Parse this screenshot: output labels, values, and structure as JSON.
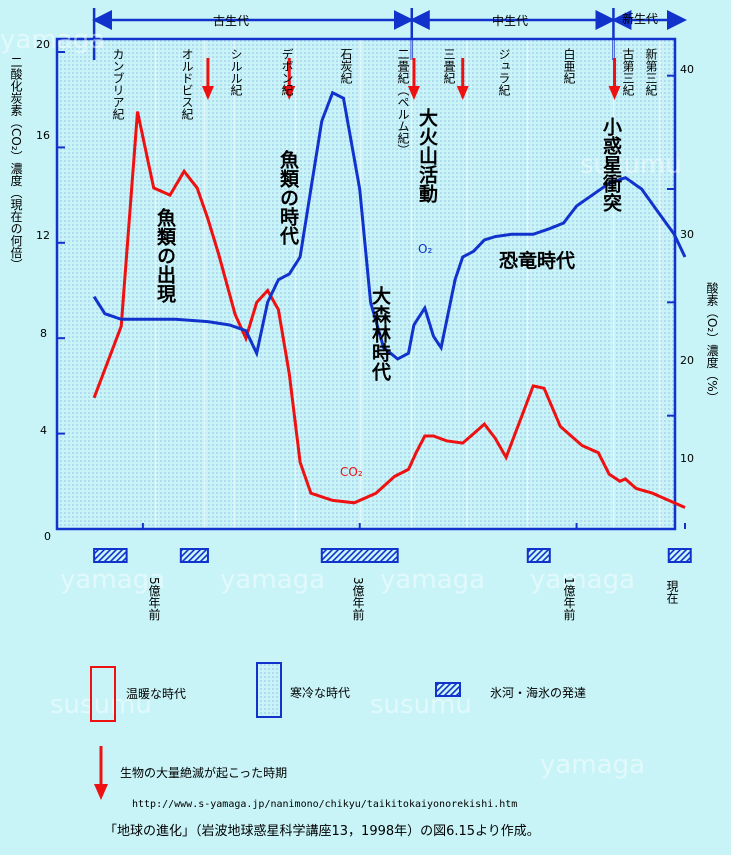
{
  "eras": {
    "paleozoic": "古生代",
    "mesozoic": "中生代",
    "cenozoic": "新生代"
  },
  "periods": [
    "カンブリア紀",
    "オルドビス紀",
    "シルル紀",
    "デボン紀",
    "石炭紀",
    "二畳紀（ペルム紀）",
    "三畳紀",
    "ジュラ紀",
    "白亜紀",
    "古第三紀",
    "新第三紀"
  ],
  "annotations": {
    "fish_appear": "魚類の出現",
    "fish_age": "魚類の時代",
    "forest_age": "大森林時代",
    "volcano": "大火山活動",
    "asteroid": "小惑星衝突",
    "dino_age": "恐竜時代",
    "o2_label": "O₂",
    "co2_label": "CO₂"
  },
  "axes": {
    "left_label": "二酸化炭素（CO₂）濃度（現在の何倍）",
    "right_label": "酸素（O₂）濃度（%）",
    "left_ticks": [
      "20",
      "16",
      "12",
      "8",
      "4",
      "0"
    ],
    "right_ticks": [
      "40",
      "30",
      "20",
      "10"
    ],
    "time_ticks": [
      "5億年前",
      "3億年前",
      "1億年前",
      "現在"
    ]
  },
  "legend": {
    "warm": "温暖な時代",
    "cold": "寒冷な時代",
    "glacier": "氷河・海氷の発達",
    "extinction": "生物の大量絶滅が起こった時期"
  },
  "url": "http://www.s-yamaga.jp/nanimono/chikyu/taikitokaiyonorekishi.htm",
  "source": "「地球の進化」（岩波地球惑星科学講座13，1998年）の図6.15より作成。",
  "watermark": [
    "yamaga",
    "susumu"
  ],
  "colors": {
    "co2": "#ee1111",
    "o2": "#1133cc",
    "warm": "#ee1111",
    "cold": "#1133cc",
    "background": "#c8f4f8"
  },
  "chart_data": {
    "type": "line",
    "x_unit": "million years ago",
    "xlim": [
      560,
      0
    ],
    "ylim_left": [
      0,
      20
    ],
    "ylim_right": [
      0,
      45
    ],
    "series": [
      {
        "name": "CO₂",
        "axis": "left",
        "x": [
          545,
          520,
          505,
          490,
          475,
          462,
          450,
          440,
          430,
          415,
          405,
          395,
          385,
          375,
          365,
          355,
          345,
          325,
          305,
          285,
          268,
          255,
          248,
          240,
          232,
          220,
          205,
          195,
          185,
          175,
          165,
          150,
          140,
          130,
          115,
          95,
          80,
          70,
          60,
          55,
          45,
          30,
          20,
          10,
          0
        ],
        "values": [
          5.5,
          8.5,
          17.5,
          14.3,
          14.0,
          15.0,
          14.3,
          13.0,
          11.5,
          9.0,
          8.0,
          9.5,
          10.0,
          9.2,
          6.5,
          2.8,
          1.5,
          1.2,
          1.1,
          1.5,
          2.2,
          2.5,
          3.2,
          3.9,
          3.9,
          3.7,
          3.6,
          4.0,
          4.4,
          3.8,
          3.0,
          4.8,
          6.0,
          5.9,
          4.3,
          3.5,
          3.2,
          2.3,
          2.0,
          2.1,
          1.7,
          1.5,
          1.3,
          1.1,
          0.9
        ]
      },
      {
        "name": "O₂",
        "axis": "right",
        "x": [
          545,
          535,
          520,
          500,
          470,
          440,
          420,
          405,
          395,
          385,
          375,
          365,
          355,
          345,
          335,
          325,
          315,
          300,
          290,
          278,
          265,
          255,
          250,
          240,
          232,
          225,
          212,
          205,
          195,
          185,
          175,
          160,
          140,
          125,
          112,
          100,
          85,
          70,
          55,
          40,
          25,
          10,
          0
        ],
        "values": [
          20.5,
          19.0,
          18.5,
          18.5,
          18.5,
          18.3,
          18.0,
          17.5,
          15.5,
          20.0,
          22.0,
          22.5,
          24.0,
          30.0,
          36.0,
          38.5,
          38.0,
          30.0,
          20.0,
          16.0,
          15.0,
          15.5,
          18.0,
          19.5,
          17.0,
          16.0,
          22.0,
          24.0,
          24.5,
          25.5,
          25.8,
          26.0,
          26.0,
          26.5,
          27.0,
          28.5,
          29.5,
          30.5,
          31.0,
          30.0,
          28.0,
          26.0,
          24.0
        ]
      }
    ],
    "warm_periods": [
      [
        545,
        505
      ],
      [
        505,
        420
      ],
      [
        420,
        370
      ],
      [
        370,
        275
      ],
      [
        275,
        230
      ],
      [
        230,
        175
      ],
      [
        175,
        110
      ],
      [
        110,
        60
      ],
      [
        60,
        0
      ]
    ],
    "cold_periods": [],
    "glacier_periods": [
      [
        545,
        515
      ],
      [
        465,
        440
      ],
      [
        335,
        265
      ],
      [
        145,
        135
      ],
      [
        15,
        0
      ]
    ],
    "extinctions": [
      440,
      365,
      250,
      205,
      65
    ]
  }
}
